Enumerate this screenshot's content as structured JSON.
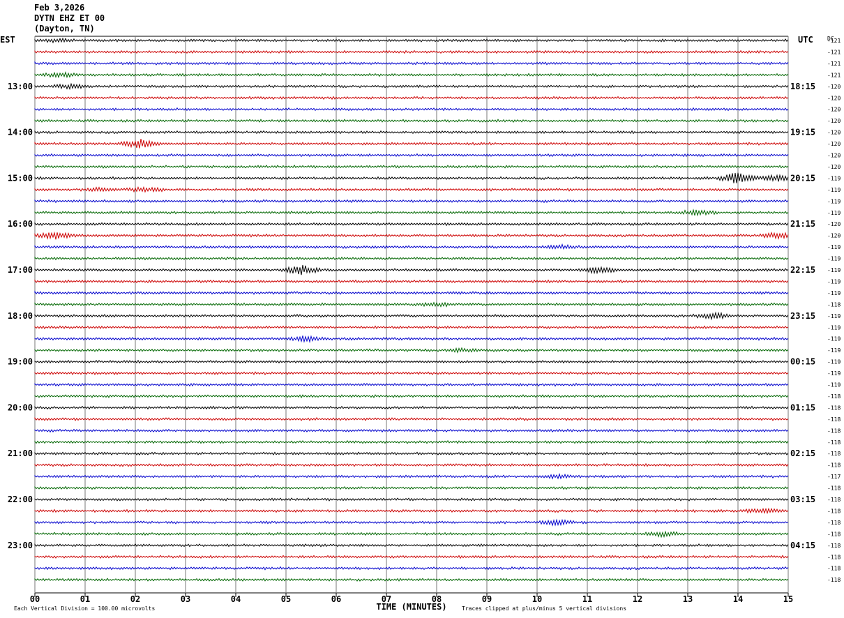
{
  "header": {
    "date": "Feb 3,2026",
    "station": "DYTN EHZ ET 00",
    "location": "(Dayton, TN)"
  },
  "chart_data": {
    "type": "line",
    "title": "",
    "xlabel": "TIME (MINUTES)",
    "left_axis_label": "EST",
    "right_axis_label": "UTC",
    "dc_label": "DC",
    "x_ticks": [
      "00",
      "01",
      "02",
      "03",
      "04",
      "05",
      "06",
      "07",
      "08",
      "09",
      "10",
      "11",
      "12",
      "13",
      "14",
      "15"
    ],
    "xlim": [
      0,
      15
    ],
    "rows_per_hour": 4,
    "minutes_per_row": 15,
    "trace_colors": [
      "#000000",
      "#cc0000",
      "#0000cc",
      "#006600"
    ],
    "hour_labels_left": [
      "13:00",
      "14:00",
      "15:00",
      "16:00",
      "17:00",
      "18:00",
      "19:00",
      "20:00",
      "21:00",
      "22:00",
      "23:00"
    ],
    "hour_labels_right": [
      "18:15",
      "19:15",
      "20:15",
      "21:15",
      "22:15",
      "23:15",
      "00:15",
      "01:15",
      "02:15",
      "03:15",
      "04:15"
    ],
    "dc_offsets": [
      -121,
      -121,
      -121,
      -121,
      -120,
      -120,
      -120,
      -120,
      -120,
      -120,
      -120,
      -120,
      -119,
      -119,
      -119,
      -119,
      -120,
      -120,
      -119,
      -119,
      -119,
      -119,
      -119,
      -118,
      -119,
      -119,
      -119,
      -119,
      -119,
      -119,
      -119,
      -118,
      -118,
      -118,
      -118,
      -118,
      -118,
      -118,
      -117,
      -118,
      -118,
      -118,
      -118,
      -118,
      -118,
      -118,
      -118,
      -118
    ],
    "footer_left": "Each Vertical Division =  100.00 microvolts",
    "footer_right": "Traces clipped at plus/minus 5 vertical divisions",
    "events": [
      {
        "row": 0,
        "minute": 0.5,
        "amp": 2.0
      },
      {
        "row": 3,
        "minute": 0.5,
        "amp": 2.5
      },
      {
        "row": 4,
        "minute": 0.7,
        "amp": 3.0
      },
      {
        "row": 9,
        "minute": 2.1,
        "amp": 6.0
      },
      {
        "row": 13,
        "minute": 2.2,
        "amp": 3.0
      },
      {
        "row": 13,
        "minute": 1.3,
        "amp": 2.0
      },
      {
        "row": 12,
        "minute": 14.0,
        "amp": 7.0
      },
      {
        "row": 12,
        "minute": 14.8,
        "amp": 4.0
      },
      {
        "row": 15,
        "minute": 13.2,
        "amp": 3.0
      },
      {
        "row": 17,
        "minute": 0.4,
        "amp": 4.5
      },
      {
        "row": 17,
        "minute": 14.8,
        "amp": 3.5
      },
      {
        "row": 18,
        "minute": 10.5,
        "amp": 2.0
      },
      {
        "row": 20,
        "minute": 5.3,
        "amp": 6.0
      },
      {
        "row": 20,
        "minute": 11.2,
        "amp": 4.0
      },
      {
        "row": 23,
        "minute": 8.0,
        "amp": 2.5
      },
      {
        "row": 24,
        "minute": 13.5,
        "amp": 4.0
      },
      {
        "row": 26,
        "minute": 5.4,
        "amp": 3.0
      },
      {
        "row": 27,
        "minute": 8.5,
        "amp": 2.0
      },
      {
        "row": 38,
        "minute": 10.4,
        "amp": 2.0
      },
      {
        "row": 41,
        "minute": 14.5,
        "amp": 2.5
      },
      {
        "row": 42,
        "minute": 10.4,
        "amp": 3.0
      },
      {
        "row": 43,
        "minute": 12.5,
        "amp": 3.0
      }
    ]
  }
}
